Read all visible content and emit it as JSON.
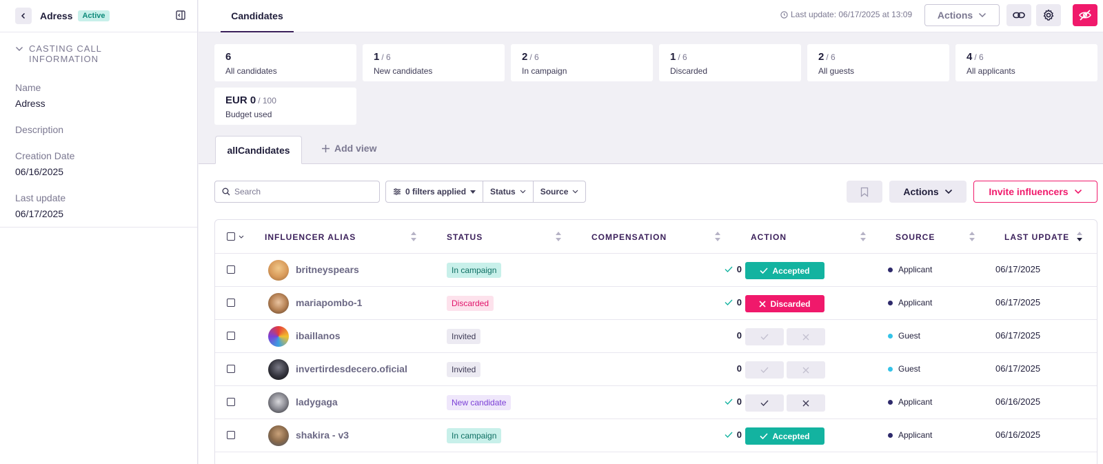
{
  "sidebar": {
    "title": "Adress",
    "status_badge": "Active",
    "section_title": "CASTING CALL INFORMATION",
    "fields": [
      {
        "label": "Name",
        "value": "Adress"
      },
      {
        "label": "Description",
        "value": ""
      },
      {
        "label": "Creation Date",
        "value": "06/16/2025"
      },
      {
        "label": "Last update",
        "value": "06/17/2025"
      }
    ]
  },
  "topbar": {
    "tab": "Candidates",
    "last_update": "Last update: 06/17/2025 at 13:09",
    "actions_label": "Actions"
  },
  "stats": [
    {
      "value": "6",
      "total": "",
      "label": "All candidates"
    },
    {
      "value": "1",
      "total": "/ 6",
      "label": "New candidates"
    },
    {
      "value": "2",
      "total": "/ 6",
      "label": "In campaign"
    },
    {
      "value": "1",
      "total": "/ 6",
      "label": "Discarded"
    },
    {
      "value": "2",
      "total": "/ 6",
      "label": "All guests"
    },
    {
      "value": "4",
      "total": "/ 6",
      "label": "All applicants"
    },
    {
      "value": "EUR 0",
      "total": "/ 100",
      "label": "Budget used"
    }
  ],
  "view_tabs": {
    "active": "allCandidates",
    "add_view": "Add view"
  },
  "toolbar": {
    "search_placeholder": "Search",
    "filters_label": "0 filters applied",
    "status_label": "Status",
    "source_label": "Source",
    "actions_label": "Actions",
    "invite_label": "Invite influencers"
  },
  "table": {
    "columns": [
      "INFLUENCER ALIAS",
      "STATUS",
      "COMPENSATION",
      "ACTION",
      "SOURCE",
      "LAST UPDATE"
    ],
    "rows": [
      {
        "alias": "britneyspears",
        "status": "In campaign",
        "compensation": "0",
        "comp_check": true,
        "action": "Accepted",
        "source": "Applicant",
        "last_update": "06/17/2025"
      },
      {
        "alias": "mariapombo-1",
        "status": "Discarded",
        "compensation": "0",
        "comp_check": true,
        "action": "Discarded",
        "source": "Applicant",
        "last_update": "06/17/2025"
      },
      {
        "alias": "ibaillanos",
        "status": "Invited",
        "compensation": "0",
        "comp_check": false,
        "action": "",
        "source": "Guest",
        "last_update": "06/17/2025"
      },
      {
        "alias": "invertirdesdecero.oficial",
        "status": "Invited",
        "compensation": "0",
        "comp_check": false,
        "action": "",
        "source": "Guest",
        "last_update": "06/17/2025"
      },
      {
        "alias": "ladygaga",
        "status": "New candidate",
        "compensation": "0",
        "comp_check": true,
        "action": "",
        "source": "Applicant",
        "last_update": "06/16/2025"
      },
      {
        "alias": "shakira - v3",
        "status": "In campaign",
        "compensation": "0",
        "comp_check": true,
        "action": "Accepted",
        "source": "Applicant",
        "last_update": "06/16/2025"
      }
    ]
  },
  "colors": {
    "accent_pink": "#f0196b",
    "teal": "#13b3a0",
    "applicant_dot": "#2e2a6b",
    "guest_dot": "#34c3e8"
  }
}
